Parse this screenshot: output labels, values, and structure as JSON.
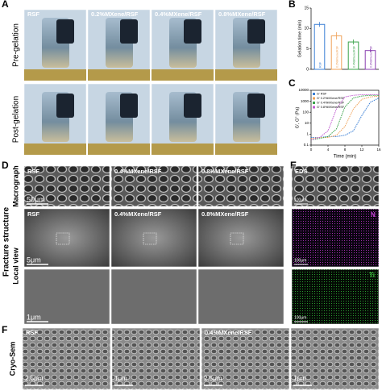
{
  "panel_labels": [
    "A",
    "B",
    "C",
    "D",
    "E",
    "F"
  ],
  "panel_a": {
    "columns": [
      "RSF",
      "0.2%MXene/RSF",
      "0.4%MXene/RSF",
      "0.8%MXene/RSF"
    ],
    "rows": [
      "Pre-gelation",
      "Post-gelation"
    ]
  },
  "panel_b": {
    "type": "bar",
    "y_label": "Gelation time (min)",
    "categories": [
      "RSF",
      "0.2%MXene/RSF",
      "0.4%MXene/RSF",
      "0.8%MXene/RSF"
    ],
    "values": [
      11,
      8.2,
      6.7,
      4.6
    ],
    "errors": [
      0.6,
      0.9,
      0.6,
      0.4
    ],
    "colors": [
      "#3a7fd5",
      "#f0a35a",
      "#3aa34a",
      "#8a3fb0"
    ],
    "ylim": [
      0,
      15
    ],
    "yticks": [
      0,
      5,
      10,
      15
    ]
  },
  "panel_c": {
    "type": "line",
    "x_label": "Time (min)",
    "y_label": "G', G'' (Pa)",
    "log_y": true,
    "xlim": [
      0,
      16
    ],
    "xticks": [
      0,
      4,
      8,
      12,
      16
    ],
    "ylim": [
      0.1,
      10000
    ],
    "yticks": [
      0.1,
      1,
      10,
      100,
      1000,
      10000
    ],
    "x": [
      0,
      2,
      4,
      6,
      8,
      10,
      12,
      14,
      16
    ],
    "series": [
      {
        "name": "G' RSF",
        "color": "#3a7fd5",
        "values": [
          0.5,
          0.5,
          0.6,
          0.6,
          0.8,
          2,
          50,
          800,
          2000
        ]
      },
      {
        "name": "G' 0.2%MXene/RSF",
        "color": "#f0a35a",
        "values": [
          0.4,
          0.5,
          0.5,
          0.8,
          5,
          200,
          1500,
          2500,
          3000
        ]
      },
      {
        "name": "G' 0.4%MXene/RSF",
        "color": "#3aa34a",
        "values": [
          0.3,
          0.4,
          0.6,
          3,
          300,
          2000,
          3000,
          3500,
          3500
        ]
      },
      {
        "name": "G' 0.8%MXene/RSF",
        "color": "#c05ad0",
        "values": [
          0.3,
          0.5,
          2,
          200,
          2500,
          3500,
          4000,
          4000,
          4000
        ]
      }
    ]
  },
  "panel_d": {
    "side_label": "Fracture structure",
    "row_labels": [
      "Macrograph",
      "Local view"
    ],
    "columns": [
      "RSF",
      "0.4%MXene/RSF",
      "0.8%MXene/RSF"
    ],
    "scale_bars": [
      "50μm",
      "5μm",
      "1μm"
    ]
  },
  "panel_e": {
    "title": "EDS",
    "elements": [
      "N",
      "Ti"
    ],
    "scale_bars": [
      "100μm",
      "100μm",
      "100μm"
    ]
  },
  "panel_f": {
    "side_label": "Cryo-Sem",
    "columns": [
      "RSF",
      "0.4%MXene/RSF"
    ],
    "scale_bars": [
      "2.5μm",
      "1μm",
      "2.5μm",
      "1μm"
    ]
  }
}
